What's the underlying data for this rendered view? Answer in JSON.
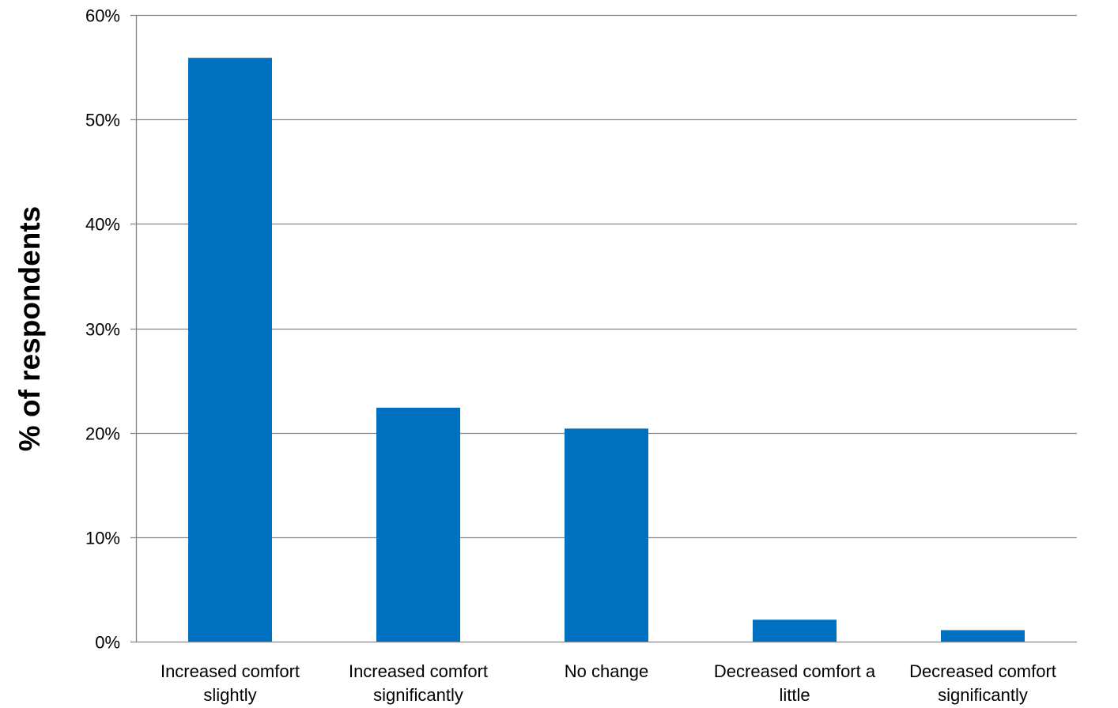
{
  "chart_data": {
    "type": "bar",
    "title": "",
    "xlabel": "",
    "ylabel": "% of respondents",
    "ylim": [
      0,
      60
    ],
    "y_ticks": [
      "0%",
      "10%",
      "20%",
      "30%",
      "40%",
      "50%",
      "60%"
    ],
    "y_tick_values": [
      0,
      10,
      20,
      30,
      40,
      50,
      60
    ],
    "categories": [
      [
        "Increased comfort",
        "slightly"
      ],
      [
        "Increased comfort",
        "significantly"
      ],
      [
        "No change"
      ],
      [
        "Decreased comfort a",
        "little"
      ],
      [
        "Decreased comfort",
        "significantly"
      ]
    ],
    "values": [
      55.9,
      22.4,
      20.4,
      2.1,
      1.1
    ],
    "bar_color": "#0070C0",
    "grid": true,
    "grid_color": "#868686",
    "legend": "none"
  }
}
